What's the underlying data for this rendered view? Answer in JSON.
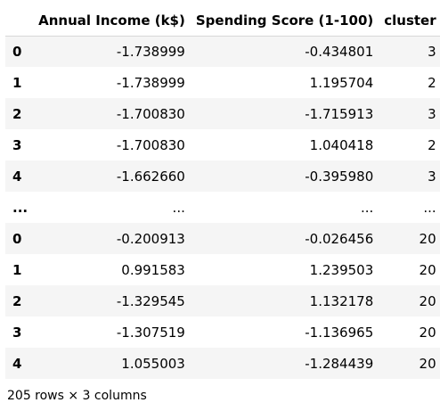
{
  "dataframe": {
    "columns": [
      "",
      "Annual Income (k$)",
      "Spending Score (1-100)",
      "cluster"
    ],
    "rows": [
      {
        "index": "0",
        "income": "-1.738999",
        "spending": "-0.434801",
        "cluster": "3"
      },
      {
        "index": "1",
        "income": "-1.738999",
        "spending": "1.195704",
        "cluster": "2"
      },
      {
        "index": "2",
        "income": "-1.700830",
        "spending": "-1.715913",
        "cluster": "3"
      },
      {
        "index": "3",
        "income": "-1.700830",
        "spending": "1.040418",
        "cluster": "2"
      },
      {
        "index": "4",
        "income": "-1.662660",
        "spending": "-0.395980",
        "cluster": "3"
      },
      {
        "index": "...",
        "income": "...",
        "spending": "...",
        "cluster": "..."
      },
      {
        "index": "0",
        "income": "-0.200913",
        "spending": "-0.026456",
        "cluster": "20"
      },
      {
        "index": "1",
        "income": "0.991583",
        "spending": "1.239503",
        "cluster": "20"
      },
      {
        "index": "2",
        "income": "-1.329545",
        "spending": "1.132178",
        "cluster": "20"
      },
      {
        "index": "3",
        "income": "-1.307519",
        "spending": "-1.136965",
        "cluster": "20"
      },
      {
        "index": "4",
        "income": "1.055003",
        "spending": "-1.284439",
        "cluster": "20"
      }
    ],
    "summary": "205 rows × 3 columns"
  }
}
